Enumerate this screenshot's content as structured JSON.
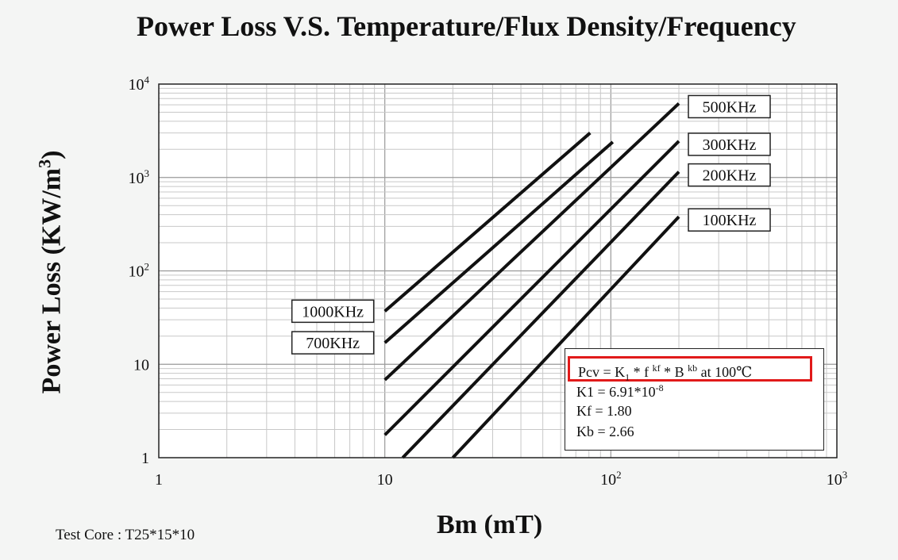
{
  "title": "Power Loss V.S. Temperature/Flux Density/Frequency",
  "footnote": "Test Core : T25*15*10",
  "formula_box": {
    "pcv_label": "Pcv = K",
    "k_sub": "1",
    "times1": " *  f ",
    "kf_sup": "kf",
    "times2": " *  B ",
    "kb_sup": "kb",
    "condition": "  at 100℃",
    "k1_label": "K1  = 6.91*10",
    "k1_exp": "-8",
    "kf_line": "Kf   = 1.80",
    "kb_line": "Kb   = 2.66"
  },
  "colors": {
    "line": "#111111",
    "grid": "#c8c8c8",
    "highlight": "#e11a1a",
    "background": "#f4f5f4"
  },
  "chart_data": {
    "type": "line",
    "title": "Power Loss V.S. Temperature/Flux Density/Frequency",
    "xlabel": "Bm (mT)",
    "ylabel": "Power Loss (KW/m³)",
    "x_scale": "log",
    "y_scale": "log",
    "xlim": [
      1,
      1000
    ],
    "ylim": [
      1,
      10000
    ],
    "x_ticks": [
      {
        "value": 1,
        "base": "1",
        "exp": ""
      },
      {
        "value": 10,
        "base": "10",
        "exp": ""
      },
      {
        "value": 100,
        "base": "10",
        "exp": "2"
      },
      {
        "value": 1000,
        "base": "10",
        "exp": "3"
      }
    ],
    "y_ticks": [
      {
        "value": 1,
        "base": "1",
        "exp": ""
      },
      {
        "value": 10,
        "base": "10",
        "exp": ""
      },
      {
        "value": 100,
        "base": "10",
        "exp": "2"
      },
      {
        "value": 1000,
        "base": "10",
        "exp": "3"
      },
      {
        "value": 10000,
        "base": "10",
        "exp": "4"
      }
    ],
    "grid": true,
    "series": [
      {
        "name": "1000KHz",
        "points": [
          [
            10,
            37
          ],
          [
            81,
            3000
          ]
        ]
      },
      {
        "name": "700KHz",
        "points": [
          [
            10,
            17
          ],
          [
            102,
            2400
          ]
        ]
      },
      {
        "name": "500KHz",
        "points": [
          [
            10,
            6.8
          ],
          [
            200,
            6200
          ]
        ]
      },
      {
        "name": "300KHz",
        "points": [
          [
            10,
            1.75
          ],
          [
            200,
            2450
          ]
        ]
      },
      {
        "name": "200KHz",
        "points": [
          [
            12,
            1
          ],
          [
            200,
            1150
          ]
        ]
      },
      {
        "name": "100KHz",
        "points": [
          [
            20,
            1
          ],
          [
            200,
            380
          ]
        ]
      }
    ],
    "series_labels": [
      {
        "series": "1000KHz",
        "side": "left"
      },
      {
        "series": "700KHz",
        "side": "left"
      },
      {
        "series": "500KHz",
        "side": "right"
      },
      {
        "series": "300KHz",
        "side": "right"
      },
      {
        "series": "200KHz",
        "side": "right"
      },
      {
        "series": "100KHz",
        "side": "right"
      }
    ]
  }
}
